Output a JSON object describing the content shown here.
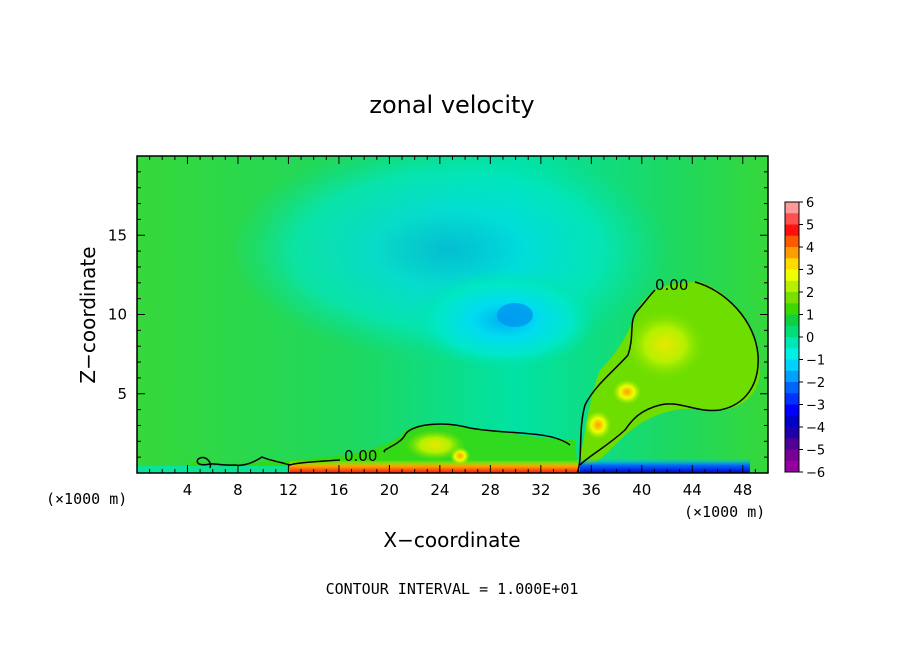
{
  "chart_data": {
    "type": "heatmap",
    "title": "zonal velocity",
    "xlabel": "X−coordinate",
    "ylabel": "Z−coordinate",
    "x_unit": "(×1000 m)",
    "xlim": [
      0,
      50
    ],
    "ylim": [
      0,
      20
    ],
    "x_ticks": [
      "4",
      "8",
      "12",
      "16",
      "20",
      "24",
      "28",
      "32",
      "36",
      "40",
      "44",
      "48"
    ],
    "y_ticks": [
      "5",
      "10",
      "15"
    ],
    "contour_label": "0.00",
    "footnote": "CONTOUR INTERVAL = 1.000E+01",
    "colorbar": {
      "labels": [
        "6",
        "5",
        "4",
        "3",
        "2",
        "1",
        "0",
        "−1",
        "−2",
        "−3",
        "−4",
        "−5",
        "−6"
      ],
      "colors": [
        "#ff9a9a",
        "#ff5050",
        "#ff1010",
        "#ff5a00",
        "#ff9c00",
        "#ffdc00",
        "#f0ff00",
        "#b4f000",
        "#78e000",
        "#3cd800",
        "#10d040",
        "#00dc78",
        "#00e6b4",
        "#00f0e6",
        "#00d2ff",
        "#00a0ff",
        "#0064ff",
        "#0032ff",
        "#0000ff",
        "#0000c8",
        "#1e00aa",
        "#500096",
        "#780096",
        "#9600a0"
      ]
    }
  }
}
